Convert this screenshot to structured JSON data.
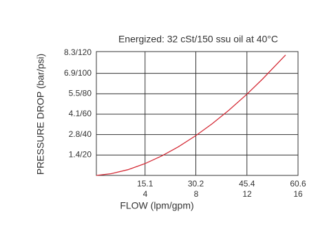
{
  "chart_data": {
    "type": "line",
    "title": "Energized: 32 cSt/150 ssu oil at 40°C",
    "x_label": "FLOW (lpm/gpm)",
    "y_label": "PRESSURE DROP (bar/psi)",
    "x": [
      0,
      5,
      10,
      15.1,
      20,
      25,
      30.2,
      35,
      40,
      45.4,
      50,
      56.9
    ],
    "values": [
      0,
      1.7,
      5.6,
      11.6,
      19,
      28,
      39,
      50.5,
      63.8,
      79.6,
      94.3,
      118
    ],
    "color": "#d42a35",
    "xlim": [
      0,
      60.6
    ],
    "xticks": [
      15.1,
      30.2,
      45.4,
      60.6
    ],
    "x2lim": [
      0,
      16
    ],
    "x2ticks": [
      4,
      8,
      12,
      16
    ],
    "ylim": [
      0,
      120
    ],
    "yticks": [
      {
        "value": 20,
        "label": "1.4/20"
      },
      {
        "value": 40,
        "label": "2.8/40"
      },
      {
        "value": 60,
        "label": "4.1/60"
      },
      {
        "value": 80,
        "label": "5.5/80"
      },
      {
        "value": 100,
        "label": "6.9/100"
      },
      {
        "value": 120,
        "label": "8.3/120"
      }
    ],
    "grid": true
  }
}
